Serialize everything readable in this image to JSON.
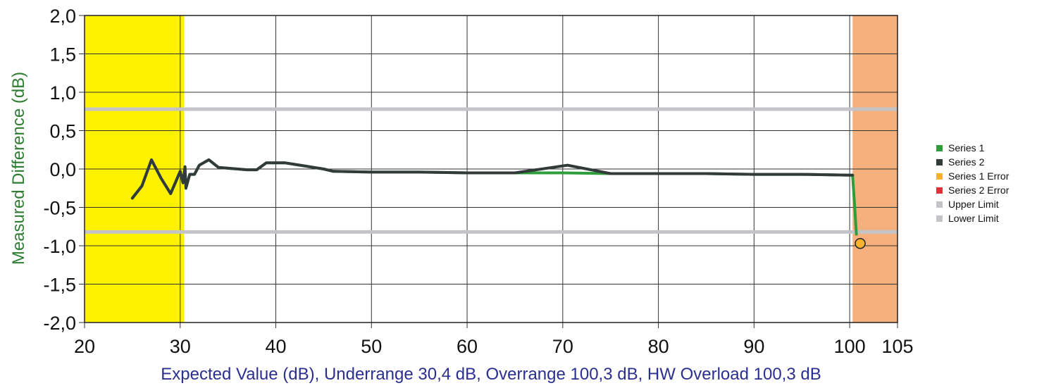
{
  "chart_data": {
    "type": "line",
    "xlabel": "Expected Value (dB), Underrange 30,4 dB, Overrange 100,3 dB, HW Overload 100,3 dB",
    "ylabel": "Measured Difference (dB)",
    "xlim": [
      20,
      105
    ],
    "ylim": [
      -2.0,
      2.0
    ],
    "x_ticks": [
      20,
      30,
      40,
      50,
      60,
      70,
      80,
      90,
      100,
      105
    ],
    "x_tick_labels": [
      "20",
      "30",
      "40",
      "50",
      "60",
      "70",
      "80",
      "90",
      "100",
      "105"
    ],
    "y_ticks": [
      2.0,
      1.5,
      1.0,
      0.5,
      0.0,
      -0.5,
      -1.0,
      -1.5,
      -2.0
    ],
    "y_tick_labels": [
      "2,0",
      "1,5",
      "1,0",
      "0,5",
      "0,0",
      "-0,5",
      "-1,0",
      "-1,5",
      "-2,0"
    ],
    "grid": true,
    "legend_position": "right",
    "regions": [
      {
        "name": "underrange",
        "x_range": [
          20,
          30.4
        ],
        "color": "#fff200"
      },
      {
        "name": "overrange",
        "x_range": [
          100.3,
          105
        ],
        "color": "#f5b07d"
      }
    ],
    "limits": [
      {
        "name": "Upper Limit",
        "y": 0.78,
        "color": "#c4c4c8"
      },
      {
        "name": "Lower Limit",
        "y": -0.82,
        "color": "#c4c4c8"
      }
    ],
    "series": [
      {
        "name": "Series 1",
        "color": "#2e9e3a",
        "x": [
          25,
          26,
          27,
          28,
          29,
          30,
          30.3,
          30.5,
          30.6,
          31,
          31.5,
          32,
          33,
          34,
          35,
          36,
          37,
          38,
          39,
          40,
          41,
          42,
          43,
          44,
          45,
          46,
          50,
          55,
          60,
          65,
          70,
          75,
          80,
          85,
          90,
          95,
          100,
          100.3,
          100.5,
          100.7
        ],
        "y": [
          -0.38,
          -0.22,
          0.12,
          -0.12,
          -0.32,
          -0.03,
          -0.18,
          0.03,
          -0.25,
          -0.07,
          -0.07,
          0.05,
          0.12,
          0.02,
          0.01,
          0.0,
          -0.01,
          -0.01,
          0.08,
          0.08,
          0.08,
          0.06,
          0.04,
          0.02,
          0.0,
          -0.03,
          -0.04,
          -0.04,
          -0.05,
          -0.05,
          -0.05,
          -0.06,
          -0.06,
          -0.06,
          -0.07,
          -0.07,
          -0.08,
          -0.08,
          -0.45,
          -0.85
        ]
      },
      {
        "name": "Series 2",
        "color": "#333b3a",
        "x": [
          25,
          26,
          27,
          28,
          29,
          30,
          30.3,
          30.5,
          30.6,
          31,
          31.5,
          32,
          33,
          34,
          35,
          36,
          37,
          38,
          39,
          40,
          41,
          42,
          43,
          44,
          45,
          46,
          50,
          55,
          60,
          65,
          70.5,
          75,
          80,
          85,
          90,
          95,
          100,
          100.3
        ],
        "y": [
          -0.38,
          -0.22,
          0.12,
          -0.12,
          -0.32,
          -0.03,
          -0.18,
          0.03,
          -0.25,
          -0.07,
          -0.07,
          0.05,
          0.12,
          0.02,
          0.01,
          0.0,
          -0.01,
          -0.01,
          0.08,
          0.08,
          0.08,
          0.06,
          0.04,
          0.02,
          0.0,
          -0.03,
          -0.04,
          -0.04,
          -0.05,
          -0.05,
          0.05,
          -0.06,
          -0.06,
          -0.06,
          -0.07,
          -0.07,
          -0.08,
          -0.08
        ]
      },
      {
        "name": "Series 1 Error",
        "color": "#f7b32b",
        "type": "scatter",
        "x": [
          101.1
        ],
        "y": [
          -0.97
        ]
      },
      {
        "name": "Series 2 Error",
        "color": "#e0323a",
        "type": "scatter",
        "x": [],
        "y": []
      }
    ],
    "legend": [
      {
        "label": "Series 1",
        "color": "#2e9e3a"
      },
      {
        "label": "Series 2",
        "color": "#333b3a"
      },
      {
        "label": "Series 1 Error",
        "color": "#f7b32b"
      },
      {
        "label": "Series 2 Error",
        "color": "#e0323a"
      },
      {
        "label": "Upper Limit",
        "color": "#c4c4c8"
      },
      {
        "label": "Lower Limit",
        "color": "#c4c4c8"
      }
    ]
  }
}
